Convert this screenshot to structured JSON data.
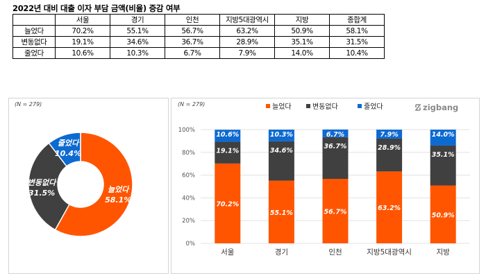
{
  "table": {
    "title": "2022년 대비 대출 이자 부담 금액(비율) 증감 여부",
    "headers": [
      "",
      "서울",
      "경기",
      "인천",
      "지방5대광역시",
      "지방",
      "종합계"
    ],
    "rows": [
      {
        "label": "늘었다",
        "cells": [
          "70.2%",
          "55.1%",
          "56.7%",
          "63.2%",
          "50.9%",
          "58.1%"
        ]
      },
      {
        "label": "변동없다",
        "cells": [
          "19.1%",
          "34.6%",
          "36.7%",
          "28.9%",
          "35.1%",
          "31.5%"
        ]
      },
      {
        "label": "줄었다",
        "cells": [
          "10.6%",
          "10.3%",
          "6.7%",
          "7.9%",
          "14.0%",
          "10.4%"
        ]
      }
    ]
  },
  "colors": {
    "increase": "#ff5500",
    "nochange": "#404040",
    "decrease": "#0d6ad1"
  },
  "donut": {
    "note": "(N = 279)",
    "chart_data": {
      "type": "pie",
      "labels": [
        "늘었다",
        "변동없다",
        "줄었다"
      ],
      "values": [
        58.1,
        31.5,
        10.4
      ],
      "value_labels": [
        "58.1%",
        "31.5%",
        "10.4%"
      ]
    }
  },
  "bar": {
    "note": "(N = 279)",
    "logo": "zigbang",
    "chart_data": {
      "type": "bar",
      "stacked": true,
      "categories": [
        "서울",
        "경기",
        "인천",
        "지방5대광역시",
        "지방"
      ],
      "series": [
        {
          "name": "늘었다",
          "values": [
            70.2,
            55.1,
            56.7,
            63.2,
            50.9
          ],
          "labels": [
            "70.2%",
            "55.1%",
            "56.7%",
            "63.2%",
            "50.9%"
          ]
        },
        {
          "name": "변동없다",
          "values": [
            19.1,
            34.6,
            36.7,
            28.9,
            35.1
          ],
          "labels": [
            "19.1%",
            "34.6%",
            "36.7%",
            "28.9%",
            "35.1%"
          ]
        },
        {
          "name": "줄었다",
          "values": [
            10.6,
            10.3,
            6.7,
            7.9,
            14.0
          ],
          "labels": [
            "10.6%",
            "10.3%",
            "6.7%",
            "7.9%",
            "14.0%"
          ]
        }
      ],
      "ylim": [
        0,
        100
      ],
      "yticks": [
        "0%",
        "20%",
        "40%",
        "60%",
        "80%",
        "100%"
      ],
      "legend": "top-center",
      "grid": true
    }
  }
}
